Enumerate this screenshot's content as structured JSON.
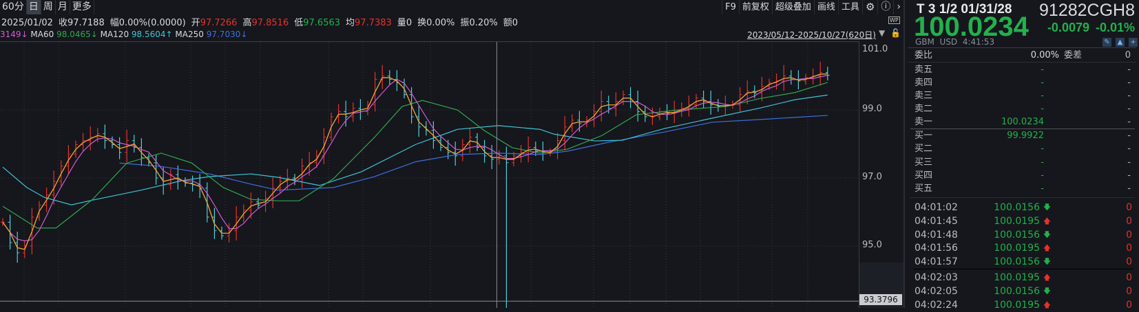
{
  "toolbar": {
    "periods": [
      "60分",
      "日",
      "周",
      "月",
      "更多"
    ],
    "selected": "日",
    "tools": [
      "F9",
      "前复权",
      "超级叠加",
      "画线",
      "工具"
    ],
    "settings_icon": "gear-icon",
    "help_icon": "question-icon",
    "expand_icon": "chevron-right-icon"
  },
  "info": {
    "date": "2025/01/02",
    "close_label": "收",
    "close": "97.7188",
    "chg_label": "幅",
    "chg": "0.00%(0.0000)",
    "open_label": "开",
    "open": "97.7266",
    "high_label": "高",
    "high": "97.8516",
    "low_label": "低",
    "low": "97.6563",
    "avg_label": "均",
    "avg": "97.7383",
    "vol_label": "量",
    "vol": "0",
    "turn_label": "换",
    "turn": "0.00%",
    "amp_label": "振",
    "amp": "0.20%",
    "amt_label": "额",
    "amt": "0"
  },
  "ma_legend": {
    "ma20_partial": "3149↓",
    "ma60_label": "MA60",
    "ma60": "98.0465↓",
    "ma120_label": "MA120",
    "ma120": "98.5604↑",
    "ma250_label": "MA250",
    "ma250": "97.7030↓"
  },
  "range": {
    "text": "2023/05/12-2025/10/27(620日)",
    "wp": "WP"
  },
  "colors": {
    "up": "#e8312c",
    "down": "#4fd0dc",
    "ma5": "#f29a2e",
    "ma10": "#efe06a",
    "ma20": "#d45ad4",
    "ma60": "#2fa84f",
    "ma120": "#3fc4d8",
    "ma250": "#3f6fe0",
    "green": "#22b14c"
  },
  "chart_data": {
    "type": "candlestick",
    "ylim": [
      93.0,
      101.2
    ],
    "yticks": [
      "101.0",
      "99.0",
      "97.0",
      "95.0"
    ],
    "cursor_price": "93.3796",
    "cursor_bar": 69,
    "close": [
      95.7,
      95.1,
      94.8,
      95.0,
      95.85,
      96.2,
      96.5,
      96.9,
      97.35,
      97.7,
      97.98,
      98.1,
      98.2,
      98.3,
      98.1,
      97.98,
      97.75,
      98.1,
      97.9,
      97.6,
      97.45,
      97.0,
      96.8,
      97.1,
      96.9,
      96.85,
      96.8,
      96.7,
      95.85,
      95.45,
      95.3,
      95.45,
      95.85,
      96.05,
      96.3,
      96.2,
      96.4,
      96.7,
      96.9,
      97.0,
      96.9,
      97.35,
      97.45,
      97.65,
      98.2,
      98.8,
      98.95,
      98.8,
      99.05,
      98.95,
      99.15,
      99.9,
      100.0,
      99.9,
      99.8,
      99.45,
      98.8,
      98.5,
      98.4,
      98.1,
      97.9,
      97.75,
      97.65,
      97.98,
      98.2,
      97.9,
      97.65,
      97.55,
      97.65,
      97.45,
      97.65,
      97.75,
      97.9,
      97.8,
      97.75,
      97.75,
      98.1,
      98.5,
      98.7,
      98.6,
      98.7,
      98.95,
      99.25,
      99.05,
      99.25,
      99.45,
      99.25,
      98.95,
      98.8,
      98.8,
      98.95,
      98.9,
      98.95,
      99.05,
      99.15,
      99.35,
      99.25,
      99.15,
      99.1,
      99.15,
      99.15,
      99.45,
      99.55,
      99.5,
      99.7,
      99.8,
      99.85,
      100.0,
      99.9,
      99.85,
      99.95,
      100.0,
      100.1,
      100.02
    ],
    "low_spike": {
      "bar": 69,
      "low": 93.38
    },
    "ma60": [
      [
        0,
        96.17
      ],
      [
        4.7,
        95.53
      ],
      [
        7.3,
        95.53
      ],
      [
        12.3,
        96.37
      ],
      [
        17,
        97.44
      ],
      [
        21.7,
        97.73
      ],
      [
        25.9,
        97.44
      ],
      [
        30.2,
        96.72
      ],
      [
        34,
        96.37
      ],
      [
        37.7,
        96.33
      ],
      [
        40.6,
        96.33
      ],
      [
        45.3,
        96.98
      ],
      [
        50.9,
        98.19
      ],
      [
        54.7,
        99.1
      ],
      [
        57.5,
        99.28
      ],
      [
        62.3,
        99.0
      ],
      [
        66,
        98.39
      ],
      [
        69.8,
        97.89
      ],
      [
        73.6,
        97.73
      ],
      [
        77.4,
        97.85
      ],
      [
        82.1,
        98.25
      ],
      [
        86.8,
        98.86
      ],
      [
        92.5,
        99.0
      ],
      [
        99.1,
        99.1
      ],
      [
        103.8,
        99.34
      ],
      [
        108.5,
        99.51
      ],
      [
        113,
        99.81
      ]
    ],
    "ma120": [
      [
        0,
        97.32
      ],
      [
        3.3,
        96.72
      ],
      [
        5.7,
        96.43
      ],
      [
        9.4,
        96.21
      ],
      [
        12.3,
        96.35
      ],
      [
        18.9,
        96.64
      ],
      [
        24.5,
        96.92
      ],
      [
        28.3,
        97.04
      ],
      [
        34,
        97.12
      ],
      [
        37.7,
        97.02
      ],
      [
        43.4,
        96.78
      ],
      [
        49.1,
        97.18
      ],
      [
        56.6,
        97.99
      ],
      [
        62.3,
        98.43
      ],
      [
        67.9,
        98.54
      ],
      [
        73.6,
        98.43
      ],
      [
        75.5,
        98.29
      ],
      [
        81.1,
        98.09
      ],
      [
        84.9,
        98.11
      ],
      [
        90.6,
        98.45
      ],
      [
        97.2,
        98.76
      ],
      [
        103.8,
        99.06
      ],
      [
        108.5,
        99.3
      ],
      [
        113,
        99.44
      ]
    ],
    "ma250": [
      [
        16,
        97.44
      ],
      [
        21.7,
        97.34
      ],
      [
        28.3,
        97.12
      ],
      [
        34,
        96.82
      ],
      [
        37.7,
        96.64
      ],
      [
        45.3,
        96.72
      ],
      [
        50.9,
        97.04
      ],
      [
        56.6,
        97.48
      ],
      [
        62.3,
        97.69
      ],
      [
        67.9,
        97.73
      ],
      [
        73.6,
        97.69
      ],
      [
        77.4,
        97.79
      ],
      [
        83,
        98.05
      ],
      [
        90.6,
        98.35
      ],
      [
        97.2,
        98.64
      ],
      [
        103.8,
        98.72
      ],
      [
        113,
        98.84
      ]
    ]
  },
  "quote": {
    "name": "T 3 1/2 01/31/28",
    "code": "91282CGH8",
    "price": "100.0234",
    "change": "-0.0079",
    "change_pct": "-0.01%",
    "exchange": "GBM",
    "currency": "USD",
    "time": "4:41:53"
  },
  "book": {
    "ratio_label": "委比",
    "ratio": "0.00%",
    "diff_label": "委差",
    "diff": "0",
    "asks": [
      {
        "label": "卖五",
        "price": "-",
        "vol": "-"
      },
      {
        "label": "卖四",
        "price": "-",
        "vol": "-"
      },
      {
        "label": "卖三",
        "price": "-",
        "vol": "-"
      },
      {
        "label": "卖二",
        "price": "-",
        "vol": "-"
      },
      {
        "label": "卖一",
        "price": "100.0234",
        "vol": "-"
      }
    ],
    "bids": [
      {
        "label": "买一",
        "price": "99.9922",
        "vol": "-"
      },
      {
        "label": "买二",
        "price": "-",
        "vol": "-"
      },
      {
        "label": "买三",
        "price": "-",
        "vol": "-"
      },
      {
        "label": "买四",
        "price": "-",
        "vol": "-"
      },
      {
        "label": "买五",
        "price": "-",
        "vol": "-"
      }
    ]
  },
  "trades": [
    {
      "time": "04:01:02",
      "price": "100.0156",
      "dir": "down",
      "vol": "0"
    },
    {
      "time": "04:01:45",
      "price": "100.0195",
      "dir": "up",
      "vol": "0"
    },
    {
      "time": "04:01:48",
      "price": "100.0156",
      "dir": "down",
      "vol": "0"
    },
    {
      "time": "04:01:56",
      "price": "100.0195",
      "dir": "up",
      "vol": "0"
    },
    {
      "time": "04:01:57",
      "price": "100.0156",
      "dir": "down",
      "vol": "0"
    },
    {
      "time": "04:02:03",
      "price": "100.0195",
      "dir": "up",
      "vol": "0"
    },
    {
      "time": "04:02:05",
      "price": "100.0156",
      "dir": "down",
      "vol": "0"
    },
    {
      "time": "04:02:24",
      "price": "100.0195",
      "dir": "up",
      "vol": "0"
    }
  ]
}
